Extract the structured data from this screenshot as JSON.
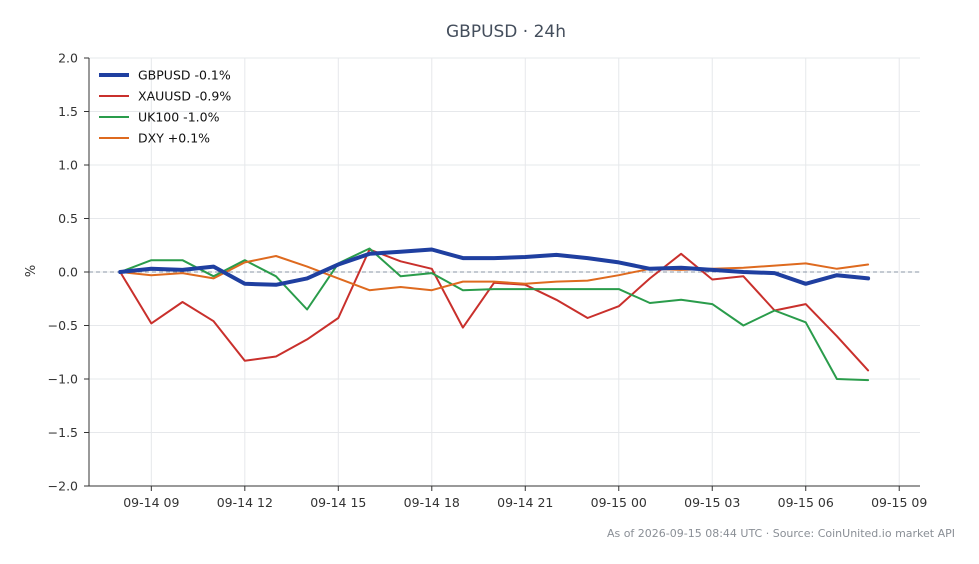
{
  "chart_data": {
    "type": "line",
    "title": "GBPUSD · 24h",
    "xlabel": "",
    "ylabel": "%",
    "ylim": [
      -2.0,
      2.0
    ],
    "yticks": [
      "−2.0",
      "−1.5",
      "−1.0",
      "−0.5",
      "0.0",
      "0.5",
      "1.0",
      "1.5",
      "2.0"
    ],
    "xlim": [
      "2026-09-14 07:00",
      "2026-09-15 09:40"
    ],
    "xticks": [
      {
        "time": "2026-09-14 09:00",
        "label": "09-14 09"
      },
      {
        "time": "2026-09-14 12:00",
        "label": "09-14 12"
      },
      {
        "time": "2026-09-14 15:00",
        "label": "09-14 15"
      },
      {
        "time": "2026-09-14 18:00",
        "label": "09-14 18"
      },
      {
        "time": "2026-09-14 21:00",
        "label": "09-14 21"
      },
      {
        "time": "2026-09-15 00:00",
        "label": "09-15 00"
      },
      {
        "time": "2026-09-15 03:00",
        "label": "09-15 03"
      },
      {
        "time": "2026-09-15 06:00",
        "label": "09-15 06"
      },
      {
        "time": "2026-09-15 09:00",
        "label": "09-15 09"
      }
    ],
    "grid": true,
    "baseline": 0,
    "legend_position": "top-left",
    "x": [
      "2026-09-14 08:00",
      "2026-09-14 09:00",
      "2026-09-14 10:00",
      "2026-09-14 11:00",
      "2026-09-14 12:00",
      "2026-09-14 13:00",
      "2026-09-14 14:00",
      "2026-09-14 15:00",
      "2026-09-14 16:00",
      "2026-09-14 17:00",
      "2026-09-14 18:00",
      "2026-09-14 19:00",
      "2026-09-14 20:00",
      "2026-09-14 21:00",
      "2026-09-14 22:00",
      "2026-09-14 23:00",
      "2026-09-15 00:00",
      "2026-09-15 01:00",
      "2026-09-15 02:00",
      "2026-09-15 03:00",
      "2026-09-15 04:00",
      "2026-09-15 05:00",
      "2026-09-15 06:00",
      "2026-09-15 07:00",
      "2026-09-15 08:00"
    ],
    "series": [
      {
        "name": "GBPUSD -0.1%",
        "color": "#1f3fa0",
        "width": 4,
        "values": [
          0.0,
          0.03,
          0.02,
          0.05,
          -0.11,
          -0.12,
          -0.06,
          0.07,
          0.17,
          0.19,
          0.21,
          0.13,
          0.13,
          0.14,
          0.16,
          0.13,
          0.09,
          0.03,
          0.04,
          0.02,
          0.0,
          -0.01,
          -0.11,
          -0.03,
          -0.06
        ]
      },
      {
        "name": "XAUUSD -0.9%",
        "color": "#c9302c",
        "width": 2,
        "values": [
          0.0,
          -0.48,
          -0.28,
          -0.46,
          -0.83,
          -0.79,
          -0.63,
          -0.43,
          0.21,
          0.1,
          0.03,
          -0.52,
          -0.1,
          -0.12,
          -0.26,
          -0.43,
          -0.32,
          -0.06,
          0.17,
          -0.07,
          -0.04,
          -0.36,
          -0.3,
          -0.6,
          -0.92
        ]
      },
      {
        "name": "UK100 -1.0%",
        "color": "#2a9c4b",
        "width": 2,
        "values": [
          0.0,
          0.11,
          0.11,
          -0.04,
          0.11,
          -0.04,
          -0.35,
          0.08,
          0.22,
          -0.04,
          -0.01,
          -0.17,
          -0.16,
          -0.16,
          -0.16,
          -0.16,
          -0.16,
          -0.29,
          -0.26,
          -0.3,
          -0.5,
          -0.36,
          -0.47,
          -1.0,
          -1.01
        ]
      },
      {
        "name": "DXY +0.1%",
        "color": "#de6a1f",
        "width": 2,
        "values": [
          0.0,
          -0.03,
          -0.01,
          -0.06,
          0.09,
          0.15,
          0.05,
          -0.06,
          -0.17,
          -0.14,
          -0.17,
          -0.09,
          -0.09,
          -0.11,
          -0.09,
          -0.08,
          -0.03,
          0.03,
          0.02,
          0.03,
          0.04,
          0.06,
          0.08,
          0.03,
          0.07
        ]
      }
    ]
  },
  "footer": "As of 2026-09-15 08:44 UTC · Source: CoinUnited.io market API"
}
